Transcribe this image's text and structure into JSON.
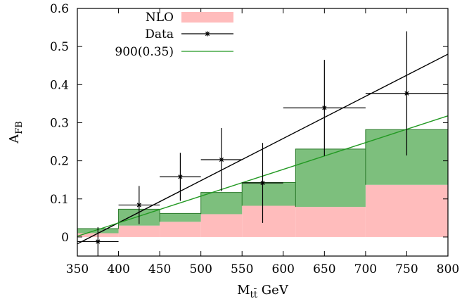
{
  "chart_data": {
    "type": "bar",
    "xlabel_main": "M",
    "xlabel_sub": "tt̄",
    "xlabel_unit": " GeV",
    "ylabel_main": "A",
    "ylabel_sub": "FB",
    "xlim": [
      350,
      800
    ],
    "ylim": [
      -0.05,
      0.6
    ],
    "xticks": [
      "350",
      "400",
      "450",
      "500",
      "550",
      "600",
      "650",
      "700",
      "750",
      "800"
    ],
    "yticks": [
      "0",
      "0.1",
      "0.2",
      "0.3",
      "0.4",
      "0.5",
      "0.6"
    ],
    "grid": false,
    "legend_position": "top-left",
    "colors": {
      "nlo": "#ffbcbc",
      "model_band": "#7dbf7d",
      "data": "#000000",
      "model_line": "#229922"
    },
    "series": [
      {
        "name": "NLO",
        "kind": "histogram",
        "bins": [
          {
            "x0": 350,
            "x1": 400,
            "y": 0.01
          },
          {
            "x0": 400,
            "x1": 450,
            "y": 0.03
          },
          {
            "x0": 450,
            "x1": 500,
            "y": 0.04
          },
          {
            "x0": 500,
            "x1": 550,
            "y": 0.06
          },
          {
            "x0": 550,
            "x1": 615,
            "y": 0.082
          },
          {
            "x0": 615,
            "x1": 700,
            "y": 0.079
          },
          {
            "x0": 700,
            "x1": 800,
            "y": 0.137
          }
        ]
      },
      {
        "name": "",
        "kind": "histogram",
        "bins": [
          {
            "x0": 350,
            "x1": 400,
            "y": 0.022
          },
          {
            "x0": 400,
            "x1": 450,
            "y": 0.073
          },
          {
            "x0": 450,
            "x1": 500,
            "y": 0.062
          },
          {
            "x0": 500,
            "x1": 550,
            "y": 0.117
          },
          {
            "x0": 550,
            "x1": 615,
            "y": 0.143
          },
          {
            "x0": 615,
            "x1": 700,
            "y": 0.231
          },
          {
            "x0": 700,
            "x1": 800,
            "y": 0.282
          }
        ]
      },
      {
        "name": "Data",
        "kind": "points",
        "points": [
          {
            "x": 375,
            "y": -0.012,
            "xerr": 25,
            "yerr_low": 0.038,
            "yerr_high": 0.038
          },
          {
            "x": 425,
            "y": 0.084,
            "xerr": 25,
            "yerr_low": 0.05,
            "yerr_high": 0.05
          },
          {
            "x": 475,
            "y": 0.158,
            "xerr": 25,
            "yerr_low": 0.063,
            "yerr_high": 0.063
          },
          {
            "x": 525,
            "y": 0.203,
            "xerr": 25,
            "yerr_low": 0.083,
            "yerr_high": 0.083
          },
          {
            "x": 575,
            "y": 0.142,
            "xerr": 25,
            "yerr_low": 0.105,
            "yerr_high": 0.105
          },
          {
            "x": 650,
            "y": 0.339,
            "xerr": 50,
            "yerr_low": 0.126,
            "yerr_high": 0.126
          },
          {
            "x": 750,
            "y": 0.377,
            "xerr": 50,
            "yerr_low": 0.163,
            "yerr_high": 0.163
          }
        ],
        "fit_line": [
          {
            "x": 350,
            "y": -0.018
          },
          {
            "x": 800,
            "y": 0.48
          }
        ]
      },
      {
        "name": "900(0.35)",
        "kind": "line",
        "points": [
          {
            "x": 350,
            "y": 0.002
          },
          {
            "x": 800,
            "y": 0.318
          }
        ]
      }
    ]
  }
}
